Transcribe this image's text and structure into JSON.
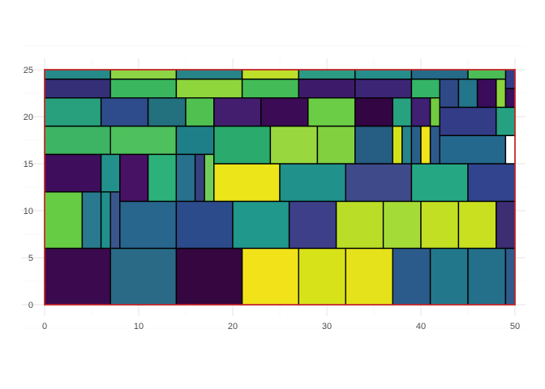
{
  "chart_data": {
    "type": "treemap",
    "title": "",
    "xlabel": "",
    "ylabel": "",
    "xlim": [
      0,
      50
    ],
    "ylim": [
      0,
      25
    ],
    "x_ticks": [
      0,
      10,
      20,
      30,
      40,
      50
    ],
    "y_ticks": [
      0,
      5,
      10,
      15,
      20,
      25
    ],
    "grid": true,
    "legend": "none",
    "colors": {
      "outline": "#d62728",
      "tile_border": "#000000"
    },
    "tiles": [
      {
        "x0": 0,
        "y0": 0,
        "x1": 7,
        "y1": 6,
        "fill": "#3b0a4e"
      },
      {
        "x0": 7,
        "y0": 0,
        "x1": 14,
        "y1": 6,
        "fill": "#2a6a86"
      },
      {
        "x0": 14,
        "y0": 0,
        "x1": 21,
        "y1": 6,
        "fill": "#35063f"
      },
      {
        "x0": 21,
        "y0": 0,
        "x1": 27,
        "y1": 6,
        "fill": "#f2e21a"
      },
      {
        "x0": 27,
        "y0": 0,
        "x1": 32,
        "y1": 6,
        "fill": "#d8e219"
      },
      {
        "x0": 32,
        "y0": 0,
        "x1": 37,
        "y1": 6,
        "fill": "#e5e21b"
      },
      {
        "x0": 37,
        "y0": 0,
        "x1": 41,
        "y1": 6,
        "fill": "#2b5b8a"
      },
      {
        "x0": 41,
        "y0": 0,
        "x1": 45,
        "y1": 6,
        "fill": "#22788a"
      },
      {
        "x0": 45,
        "y0": 0,
        "x1": 49,
        "y1": 6,
        "fill": "#246f8a"
      },
      {
        "x0": 49,
        "y0": 0,
        "x1": 50,
        "y1": 6,
        "fill": "#2f5a8c"
      },
      {
        "x0": 0,
        "y0": 6,
        "x1": 4,
        "y1": 12,
        "fill": "#66cc44"
      },
      {
        "x0": 4,
        "y0": 6,
        "x1": 6,
        "y1": 12,
        "fill": "#297a8e"
      },
      {
        "x0": 6,
        "y0": 6,
        "x1": 7,
        "y1": 12,
        "fill": "#21908c"
      },
      {
        "x0": 7,
        "y0": 6,
        "x1": 8,
        "y1": 12,
        "fill": "#39568c"
      },
      {
        "x0": 8,
        "y0": 6,
        "x1": 14,
        "y1": 11,
        "fill": "#28668e"
      },
      {
        "x0": 14,
        "y0": 6,
        "x1": 20,
        "y1": 11,
        "fill": "#2c4b8a"
      },
      {
        "x0": 20,
        "y0": 6,
        "x1": 26,
        "y1": 11,
        "fill": "#20988b"
      },
      {
        "x0": 26,
        "y0": 6,
        "x1": 31,
        "y1": 11,
        "fill": "#3e3f89"
      },
      {
        "x0": 31,
        "y0": 6,
        "x1": 36,
        "y1": 11,
        "fill": "#bade28"
      },
      {
        "x0": 36,
        "y0": 6,
        "x1": 40,
        "y1": 11,
        "fill": "#a5db36"
      },
      {
        "x0": 40,
        "y0": 6,
        "x1": 44,
        "y1": 11,
        "fill": "#c2df23"
      },
      {
        "x0": 44,
        "y0": 6,
        "x1": 48,
        "y1": 11,
        "fill": "#c8e020"
      },
      {
        "x0": 48,
        "y0": 6,
        "x1": 50,
        "y1": 11,
        "fill": "#3d2d73"
      },
      {
        "x0": 0,
        "y0": 12,
        "x1": 6,
        "y1": 16,
        "fill": "#3e0d5c"
      },
      {
        "x0": 6,
        "y0": 12,
        "x1": 8,
        "y1": 16,
        "fill": "#23918b"
      },
      {
        "x0": 8,
        "y0": 11,
        "x1": 11,
        "y1": 16,
        "fill": "#471164"
      },
      {
        "x0": 11,
        "y0": 11,
        "x1": 14,
        "y1": 16,
        "fill": "#2db17a"
      },
      {
        "x0": 14,
        "y0": 11,
        "x1": 16,
        "y1": 16,
        "fill": "#27718e"
      },
      {
        "x0": 16,
        "y0": 11,
        "x1": 17,
        "y1": 16,
        "fill": "#37417e"
      },
      {
        "x0": 17,
        "y0": 11,
        "x1": 18,
        "y1": 16,
        "fill": "#6ece58"
      },
      {
        "x0": 18,
        "y0": 11,
        "x1": 25,
        "y1": 15,
        "fill": "#ebe51a"
      },
      {
        "x0": 25,
        "y0": 11,
        "x1": 32,
        "y1": 15,
        "fill": "#21918c"
      },
      {
        "x0": 32,
        "y0": 11,
        "x1": 39,
        "y1": 15,
        "fill": "#3f4a8a"
      },
      {
        "x0": 39,
        "y0": 11,
        "x1": 45,
        "y1": 15,
        "fill": "#26a783"
      },
      {
        "x0": 45,
        "y0": 11,
        "x1": 50,
        "y1": 15,
        "fill": "#31448d"
      },
      {
        "x0": 0,
        "y0": 16,
        "x1": 7,
        "y1": 19,
        "fill": "#3cb463"
      },
      {
        "x0": 7,
        "y0": 16,
        "x1": 14,
        "y1": 19,
        "fill": "#4ec05d"
      },
      {
        "x0": 14,
        "y0": 16,
        "x1": 18,
        "y1": 19,
        "fill": "#1f7f88"
      },
      {
        "x0": 18,
        "y0": 15,
        "x1": 24,
        "y1": 19,
        "fill": "#2aaa6c"
      },
      {
        "x0": 24,
        "y0": 15,
        "x1": 29,
        "y1": 19,
        "fill": "#98d83e"
      },
      {
        "x0": 29,
        "y0": 15,
        "x1": 33,
        "y1": 19,
        "fill": "#81d040"
      },
      {
        "x0": 33,
        "y0": 15,
        "x1": 37,
        "y1": 19,
        "fill": "#265d82"
      },
      {
        "x0": 37,
        "y0": 15,
        "x1": 38,
        "y1": 19,
        "fill": "#d4e21b"
      },
      {
        "x0": 38,
        "y0": 15,
        "x1": 39,
        "y1": 19,
        "fill": "#27838e"
      },
      {
        "x0": 39,
        "y0": 15,
        "x1": 40,
        "y1": 19,
        "fill": "#29608a"
      },
      {
        "x0": 40,
        "y0": 15,
        "x1": 41,
        "y1": 19,
        "fill": "#f0e41a"
      },
      {
        "x0": 41,
        "y0": 15,
        "x1": 42,
        "y1": 19,
        "fill": "#2c5a8c"
      },
      {
        "x0": 42,
        "y0": 15,
        "x1": 49,
        "y1": 18,
        "fill": "#24698d"
      },
      {
        "x0": 49,
        "y0": 15,
        "x1": 50,
        "y1": 18,
        "fill": "#ffffff"
      },
      {
        "x0": 0,
        "y0": 19,
        "x1": 6,
        "y1": 22,
        "fill": "#28a07e"
      },
      {
        "x0": 6,
        "y0": 19,
        "x1": 11,
        "y1": 22,
        "fill": "#2e4c8c"
      },
      {
        "x0": 11,
        "y0": 19,
        "x1": 15,
        "y1": 22,
        "fill": "#23707e"
      },
      {
        "x0": 15,
        "y0": 19,
        "x1": 18,
        "y1": 22,
        "fill": "#50c150"
      },
      {
        "x0": 18,
        "y0": 19,
        "x1": 23,
        "y1": 22,
        "fill": "#431e6e"
      },
      {
        "x0": 23,
        "y0": 19,
        "x1": 28,
        "y1": 22,
        "fill": "#3c0b55"
      },
      {
        "x0": 28,
        "y0": 19,
        "x1": 33,
        "y1": 22,
        "fill": "#6bcd45"
      },
      {
        "x0": 33,
        "y0": 19,
        "x1": 37,
        "y1": 22,
        "fill": "#330542"
      },
      {
        "x0": 37,
        "y0": 19,
        "x1": 39,
        "y1": 22,
        "fill": "#27a180"
      },
      {
        "x0": 39,
        "y0": 19,
        "x1": 41,
        "y1": 22,
        "fill": "#3f2073"
      },
      {
        "x0": 41,
        "y0": 19,
        "x1": 42,
        "y1": 22,
        "fill": "#71cc40"
      },
      {
        "x0": 42,
        "y0": 18,
        "x1": 48,
        "y1": 21,
        "fill": "#333c86"
      },
      {
        "x0": 48,
        "y0": 18,
        "x1": 50,
        "y1": 21,
        "fill": "#25a181"
      },
      {
        "x0": 0,
        "y0": 22,
        "x1": 7,
        "y1": 24,
        "fill": "#342f77"
      },
      {
        "x0": 7,
        "y0": 22,
        "x1": 14,
        "y1": 24,
        "fill": "#3ab75e"
      },
      {
        "x0": 14,
        "y0": 22,
        "x1": 21,
        "y1": 24,
        "fill": "#8ed63c"
      },
      {
        "x0": 21,
        "y0": 22,
        "x1": 27,
        "y1": 24,
        "fill": "#43bc57"
      },
      {
        "x0": 27,
        "y0": 22,
        "x1": 33,
        "y1": 24,
        "fill": "#3d1b6a"
      },
      {
        "x0": 33,
        "y0": 22,
        "x1": 39,
        "y1": 24,
        "fill": "#3d2575"
      },
      {
        "x0": 39,
        "y0": 22,
        "x1": 42,
        "y1": 24,
        "fill": "#34b467"
      },
      {
        "x0": 42,
        "y0": 21,
        "x1": 44,
        "y1": 24,
        "fill": "#2d4a87"
      },
      {
        "x0": 44,
        "y0": 21,
        "x1": 46,
        "y1": 24,
        "fill": "#22758a"
      },
      {
        "x0": 46,
        "y0": 21,
        "x1": 48,
        "y1": 24,
        "fill": "#3a0c5a"
      },
      {
        "x0": 48,
        "y0": 21,
        "x1": 49,
        "y1": 24,
        "fill": "#8bd43e"
      },
      {
        "x0": 49,
        "y0": 21,
        "x1": 50,
        "y1": 23,
        "fill": "#3a0f5d"
      },
      {
        "x0": 49,
        "y0": 23,
        "x1": 50,
        "y1": 25,
        "fill": "#333c88"
      },
      {
        "x0": 0,
        "y0": 24,
        "x1": 7,
        "y1": 25,
        "fill": "#268a8a"
      },
      {
        "x0": 7,
        "y0": 24,
        "x1": 14,
        "y1": 25,
        "fill": "#8dd545"
      },
      {
        "x0": 14,
        "y0": 24,
        "x1": 21,
        "y1": 25,
        "fill": "#278488"
      },
      {
        "x0": 21,
        "y0": 24,
        "x1": 27,
        "y1": 25,
        "fill": "#bfe02a"
      },
      {
        "x0": 27,
        "y0": 24,
        "x1": 33,
        "y1": 25,
        "fill": "#2c9b83"
      },
      {
        "x0": 33,
        "y0": 24,
        "x1": 39,
        "y1": 25,
        "fill": "#268e8a"
      },
      {
        "x0": 39,
        "y0": 24,
        "x1": 45,
        "y1": 25,
        "fill": "#266a8a"
      },
      {
        "x0": 45,
        "y0": 24,
        "x1": 49,
        "y1": 25,
        "fill": "#4cbd56"
      }
    ]
  }
}
